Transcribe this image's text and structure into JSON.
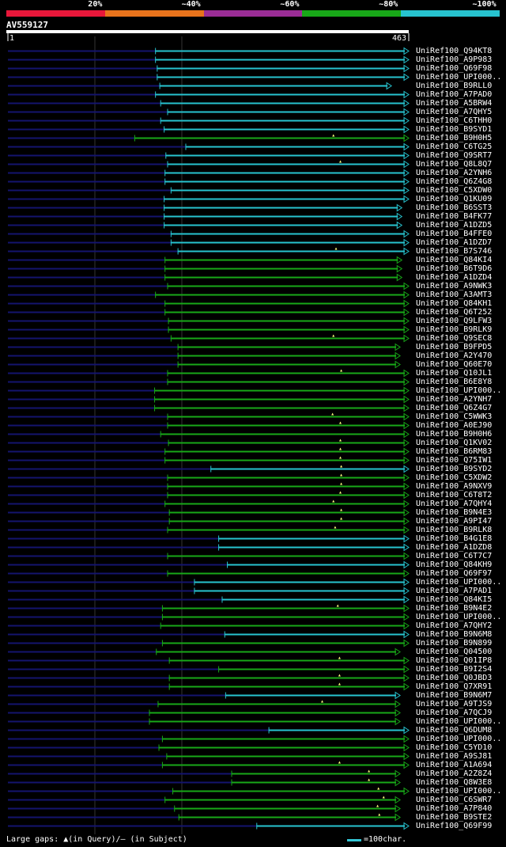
{
  "legend": {
    "segments": [
      {
        "label": "20%",
        "color": "#e8173a"
      },
      {
        "label": "~40%",
        "color": "#e8731c"
      },
      {
        "label": "~60%",
        "color": "#9b2d96"
      },
      {
        "label": "~80%",
        "color": "#18a818"
      },
      {
        "label": "~100%",
        "color": "#27c3cf"
      }
    ]
  },
  "query": {
    "accession": "AV559127",
    "start_label": "1",
    "end_label": "463",
    "length": 463
  },
  "footer": {
    "gaps_text": "Large gaps: ▲(in Query)/– (in Subject)",
    "scale_text": "=100char."
  },
  "hits": [
    {
      "name": "UniRef100_Q94KT8",
      "start": 170,
      "end": 463,
      "color": "cyan",
      "gaps": []
    },
    {
      "name": "UniRef100_A9P983",
      "start": 170,
      "end": 463,
      "color": "cyan",
      "gaps": []
    },
    {
      "name": "UniRef100_Q69F98",
      "start": 172,
      "end": 463,
      "color": "cyan",
      "gaps": []
    },
    {
      "name": "UniRef100_UPI000..",
      "start": 172,
      "end": 463,
      "color": "cyan",
      "gaps": []
    },
    {
      "name": "UniRef100_B9RLL0",
      "start": 175,
      "end": 443,
      "color": "cyan",
      "gaps": []
    },
    {
      "name": "UniRef100_A7PAD0",
      "start": 170,
      "end": 463,
      "color": "cyan",
      "gaps": []
    },
    {
      "name": "UniRef100_A5BRW4",
      "start": 176,
      "end": 463,
      "color": "cyan",
      "gaps": []
    },
    {
      "name": "UniRef100_A7QHY5",
      "start": 184,
      "end": 463,
      "color": "cyan",
      "gaps": []
    },
    {
      "name": "UniRef100_C6THH0",
      "start": 176,
      "end": 463,
      "color": "cyan",
      "gaps": []
    },
    {
      "name": "UniRef100_B9SYD1",
      "start": 180,
      "end": 463,
      "color": "cyan",
      "gaps": []
    },
    {
      "name": "UniRef100_B9H0H5",
      "start": 146,
      "end": 463,
      "color": "green",
      "gaps": [
        376
      ]
    },
    {
      "name": "UniRef100_C6TG25",
      "start": 205,
      "end": 463,
      "color": "cyan",
      "gaps": []
    },
    {
      "name": "UniRef100_Q9SRT7",
      "start": 182,
      "end": 463,
      "color": "cyan",
      "gaps": []
    },
    {
      "name": "UniRef100_Q8L8Q7",
      "start": 184,
      "end": 463,
      "color": "cyan",
      "gaps": [
        384
      ]
    },
    {
      "name": "UniRef100_A2YNH6",
      "start": 181,
      "end": 463,
      "color": "cyan",
      "gaps": []
    },
    {
      "name": "UniRef100_Q6Z4G8",
      "start": 181,
      "end": 463,
      "color": "cyan",
      "gaps": []
    },
    {
      "name": "UniRef100_C5XDW0",
      "start": 188,
      "end": 463,
      "color": "cyan",
      "gaps": []
    },
    {
      "name": "UniRef100_Q1KU09",
      "start": 180,
      "end": 463,
      "color": "cyan",
      "gaps": []
    },
    {
      "name": "UniRef100_B6SST3",
      "start": 180,
      "end": 455,
      "color": "cyan",
      "gaps": []
    },
    {
      "name": "UniRef100_B4FK77",
      "start": 180,
      "end": 455,
      "color": "cyan",
      "gaps": []
    },
    {
      "name": "UniRef100_A1DZD5",
      "start": 180,
      "end": 455,
      "color": "cyan",
      "gaps": []
    },
    {
      "name": "UniRef100_B4FFE0",
      "start": 188,
      "end": 463,
      "color": "cyan",
      "gaps": []
    },
    {
      "name": "UniRef100_A1DZD7",
      "start": 188,
      "end": 463,
      "color": "cyan",
      "gaps": []
    },
    {
      "name": "UniRef100_B7S746",
      "start": 196,
      "end": 463,
      "color": "cyan",
      "gaps": [
        379
      ]
    },
    {
      "name": "UniRef100_Q84KI4",
      "start": 181,
      "end": 455,
      "color": "green",
      "gaps": []
    },
    {
      "name": "UniRef100_B6T9D6",
      "start": 181,
      "end": 455,
      "color": "green",
      "gaps": []
    },
    {
      "name": "UniRef100_A1DZD4",
      "start": 181,
      "end": 455,
      "color": "green",
      "gaps": []
    },
    {
      "name": "UniRef100_A9NWK3",
      "start": 184,
      "end": 463,
      "color": "green",
      "gaps": []
    },
    {
      "name": "UniRef100_A3AMT3",
      "start": 170,
      "end": 463,
      "color": "green",
      "gaps": []
    },
    {
      "name": "UniRef100_Q84KH1",
      "start": 181,
      "end": 463,
      "color": "green",
      "gaps": []
    },
    {
      "name": "UniRef100_Q6T252",
      "start": 181,
      "end": 463,
      "color": "green",
      "gaps": []
    },
    {
      "name": "UniRef100_Q9LFW3",
      "start": 185,
      "end": 463,
      "color": "green",
      "gaps": []
    },
    {
      "name": "UniRef100_B9RLK9",
      "start": 185,
      "end": 463,
      "color": "green",
      "gaps": []
    },
    {
      "name": "UniRef100_Q9SEC8",
      "start": 188,
      "end": 463,
      "color": "green",
      "gaps": [
        376
      ]
    },
    {
      "name": "UniRef100_B9FPD5",
      "start": 196,
      "end": 453,
      "color": "green",
      "gaps": []
    },
    {
      "name": "UniRef100_A2Y470",
      "start": 196,
      "end": 453,
      "color": "green",
      "gaps": []
    },
    {
      "name": "UniRef100_Q60E70",
      "start": 196,
      "end": 453,
      "color": "green",
      "gaps": []
    },
    {
      "name": "UniRef100_Q10JL1",
      "start": 184,
      "end": 463,
      "color": "green",
      "gaps": [
        385
      ]
    },
    {
      "name": "UniRef100_B6E8Y8",
      "start": 184,
      "end": 463,
      "color": "green",
      "gaps": []
    },
    {
      "name": "UniRef100_UPI000..",
      "start": 169,
      "end": 463,
      "color": "green",
      "gaps": []
    },
    {
      "name": "UniRef100_A2YNH7",
      "start": 169,
      "end": 463,
      "color": "green",
      "gaps": []
    },
    {
      "name": "UniRef100_Q6Z4G7",
      "start": 169,
      "end": 463,
      "color": "green",
      "gaps": []
    },
    {
      "name": "UniRef100_C5WWK3",
      "start": 184,
      "end": 463,
      "color": "green",
      "gaps": [
        375
      ]
    },
    {
      "name": "UniRef100_A0EJ90",
      "start": 184,
      "end": 463,
      "color": "green",
      "gaps": [
        384
      ]
    },
    {
      "name": "UniRef100_B9H0H6",
      "start": 176,
      "end": 463,
      "color": "green",
      "gaps": []
    },
    {
      "name": "UniRef100_Q1KV02",
      "start": 185,
      "end": 463,
      "color": "green",
      "gaps": [
        384
      ]
    },
    {
      "name": "UniRef100_B6RM83",
      "start": 181,
      "end": 463,
      "color": "green",
      "gaps": [
        384
      ]
    },
    {
      "name": "UniRef100_Q75IW1",
      "start": 181,
      "end": 463,
      "color": "green",
      "gaps": [
        384
      ]
    },
    {
      "name": "UniRef100_B9SYD2",
      "start": 234,
      "end": 463,
      "color": "cyan",
      "gaps": [
        385
      ]
    },
    {
      "name": "UniRef100_C5XDW2",
      "start": 184,
      "end": 463,
      "color": "green",
      "gaps": [
        385
      ]
    },
    {
      "name": "UniRef100_A9NXV9",
      "start": 184,
      "end": 463,
      "color": "green",
      "gaps": [
        385
      ]
    },
    {
      "name": "UniRef100_C6T8T2",
      "start": 184,
      "end": 463,
      "color": "green",
      "gaps": [
        384
      ]
    },
    {
      "name": "UniRef100_A7QHY4",
      "start": 181,
      "end": 463,
      "color": "green",
      "gaps": [
        376
      ]
    },
    {
      "name": "UniRef100_B9N4E3",
      "start": 186,
      "end": 463,
      "color": "green",
      "gaps": [
        385
      ]
    },
    {
      "name": "UniRef100_A9PI47",
      "start": 186,
      "end": 463,
      "color": "green",
      "gaps": [
        385
      ]
    },
    {
      "name": "UniRef100_B9RLK8",
      "start": 184,
      "end": 463,
      "color": "green",
      "gaps": [
        378
      ]
    },
    {
      "name": "UniRef100_B4G1E8",
      "start": 243,
      "end": 463,
      "color": "cyan",
      "gaps": []
    },
    {
      "name": "UniRef100_A1DZD8",
      "start": 243,
      "end": 463,
      "color": "cyan",
      "gaps": []
    },
    {
      "name": "UniRef100_C6T7C7",
      "start": 184,
      "end": 463,
      "color": "green",
      "gaps": []
    },
    {
      "name": "UniRef100_Q84KH9",
      "start": 253,
      "end": 463,
      "color": "cyan",
      "gaps": []
    },
    {
      "name": "UniRef100_Q69F97",
      "start": 184,
      "end": 463,
      "color": "green",
      "gaps": []
    },
    {
      "name": "UniRef100_UPI000..",
      "start": 215,
      "end": 463,
      "color": "cyan",
      "gaps": []
    },
    {
      "name": "UniRef100_A7PAD1",
      "start": 215,
      "end": 463,
      "color": "cyan",
      "gaps": []
    },
    {
      "name": "UniRef100_Q84KI5",
      "start": 247,
      "end": 463,
      "color": "cyan",
      "gaps": []
    },
    {
      "name": "UniRef100_B9N4E2",
      "start": 178,
      "end": 463,
      "color": "green",
      "gaps": [
        381
      ]
    },
    {
      "name": "UniRef100_UPI000..",
      "start": 178,
      "end": 463,
      "color": "green",
      "gaps": []
    },
    {
      "name": "UniRef100_A7QHY2",
      "start": 176,
      "end": 463,
      "color": "green",
      "gaps": []
    },
    {
      "name": "UniRef100_B9N6M8",
      "start": 250,
      "end": 463,
      "color": "cyan",
      "gaps": []
    },
    {
      "name": "UniRef100_B9N899",
      "start": 178,
      "end": 463,
      "color": "green",
      "gaps": []
    },
    {
      "name": "UniRef100_Q04500",
      "start": 171,
      "end": 453,
      "color": "green",
      "gaps": []
    },
    {
      "name": "UniRef100_Q01IP8",
      "start": 186,
      "end": 463,
      "color": "green",
      "gaps": [
        383
      ]
    },
    {
      "name": "UniRef100_B9I2S4",
      "start": 243,
      "end": 463,
      "color": "green",
      "gaps": []
    },
    {
      "name": "UniRef100_Q0JBD3",
      "start": 186,
      "end": 463,
      "color": "green",
      "gaps": [
        383
      ]
    },
    {
      "name": "UniRef100_Q7XR91",
      "start": 186,
      "end": 463,
      "color": "green",
      "gaps": [
        383
      ]
    },
    {
      "name": "UniRef100_B9N6M7",
      "start": 251,
      "end": 453,
      "color": "cyan",
      "gaps": []
    },
    {
      "name": "UniRef100_A9TJS9",
      "start": 173,
      "end": 453,
      "color": "green",
      "gaps": [
        363
      ]
    },
    {
      "name": "UniRef100_A7QCJ9",
      "start": 163,
      "end": 453,
      "color": "green",
      "gaps": []
    },
    {
      "name": "UniRef100_UPI000..",
      "start": 163,
      "end": 453,
      "color": "green",
      "gaps": []
    },
    {
      "name": "UniRef100_Q6DUM8",
      "start": 301,
      "end": 463,
      "color": "cyan",
      "gaps": []
    },
    {
      "name": "UniRef100_UPI000..",
      "start": 178,
      "end": 463,
      "color": "green",
      "gaps": []
    },
    {
      "name": "UniRef100_C5YD10",
      "start": 174,
      "end": 463,
      "color": "green",
      "gaps": []
    },
    {
      "name": "UniRef100_A9SJ81",
      "start": 183,
      "end": 463,
      "color": "green",
      "gaps": []
    },
    {
      "name": "UniRef100_A1A694",
      "start": 178,
      "end": 463,
      "color": "green",
      "gaps": [
        383
      ]
    },
    {
      "name": "UniRef100_A2Z8Z4",
      "start": 258,
      "end": 453,
      "color": "green",
      "gaps": [
        417
      ]
    },
    {
      "name": "UniRef100_Q8W3E8",
      "start": 258,
      "end": 453,
      "color": "green",
      "gaps": [
        417
      ]
    },
    {
      "name": "UniRef100_UPI000..",
      "start": 190,
      "end": 463,
      "color": "green",
      "gaps": [
        428
      ]
    },
    {
      "name": "UniRef100_C6SWR7",
      "start": 181,
      "end": 453,
      "color": "green",
      "gaps": [
        434
      ]
    },
    {
      "name": "UniRef100_A7P840",
      "start": 192,
      "end": 453,
      "color": "green",
      "gaps": [
        427
      ]
    },
    {
      "name": "UniRef100_B9STE2",
      "start": 197,
      "end": 453,
      "color": "green",
      "gaps": [
        429
      ]
    },
    {
      "name": "UniRef100_Q69F99",
      "start": 287,
      "end": 463,
      "color": "cyan",
      "gaps": []
    }
  ],
  "colors": {
    "cyan": "#27c3cf",
    "green": "#18a818",
    "navy": "#14146e",
    "grid": "#333333"
  }
}
